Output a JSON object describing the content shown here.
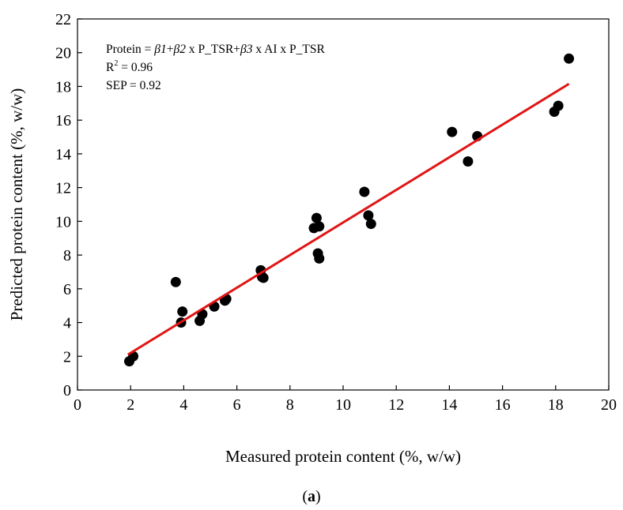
{
  "chart_data": {
    "type": "scatter",
    "title": "",
    "xlabel": "Measured protein content (%, w/w)",
    "ylabel": "Predicted protein content (%, w/w)",
    "xlim": [
      0,
      20
    ],
    "ylim": [
      0,
      22
    ],
    "x_ticks": [
      "0",
      "2",
      "4",
      "6",
      "8",
      "10",
      "12",
      "14",
      "16",
      "18",
      "20"
    ],
    "y_ticks": [
      "0",
      "2",
      "4",
      "6",
      "8",
      "10",
      "12",
      "14",
      "16",
      "18",
      "20",
      "22"
    ],
    "grid": false,
    "legend": "none",
    "marker_color": "#000000",
    "line_color": "#e11414",
    "points": [
      {
        "x": 1.95,
        "y": 1.7
      },
      {
        "x": 2.1,
        "y": 2.0
      },
      {
        "x": 3.7,
        "y": 6.4
      },
      {
        "x": 3.9,
        "y": 4.0
      },
      {
        "x": 3.95,
        "y": 4.65
      },
      {
        "x": 4.6,
        "y": 4.1
      },
      {
        "x": 4.7,
        "y": 4.5
      },
      {
        "x": 5.15,
        "y": 4.95
      },
      {
        "x": 5.55,
        "y": 5.3
      },
      {
        "x": 5.6,
        "y": 5.4
      },
      {
        "x": 6.9,
        "y": 7.1
      },
      {
        "x": 6.95,
        "y": 6.7
      },
      {
        "x": 7.0,
        "y": 6.65
      },
      {
        "x": 8.9,
        "y": 9.6
      },
      {
        "x": 9.0,
        "y": 10.2
      },
      {
        "x": 9.1,
        "y": 9.7
      },
      {
        "x": 9.05,
        "y": 8.1
      },
      {
        "x": 9.1,
        "y": 7.8
      },
      {
        "x": 10.8,
        "y": 11.75
      },
      {
        "x": 10.95,
        "y": 10.35
      },
      {
        "x": 11.05,
        "y": 9.85
      },
      {
        "x": 14.1,
        "y": 15.3
      },
      {
        "x": 14.7,
        "y": 13.55
      },
      {
        "x": 15.05,
        "y": 15.05
      },
      {
        "x": 17.95,
        "y": 16.5
      },
      {
        "x": 18.1,
        "y": 16.85
      },
      {
        "x": 18.5,
        "y": 19.65
      }
    ],
    "fit_line": {
      "x": [
        1.9,
        18.5
      ],
      "y": [
        2.1,
        18.15
      ]
    },
    "annotations": {
      "equation_prefix": "Protein = ",
      "beta1": "β1",
      "plus1": "+",
      "beta2": "β2",
      "term2": " x P_TSR+",
      "beta3": "β3",
      "term3": " x AI x P_TSR",
      "r2_prefix": "R",
      "r2_sup": "2",
      "r2_value": " = 0.96",
      "sep": "SEP = 0.92"
    },
    "caption_open": "(",
    "caption_letter": "a",
    "caption_close": ")"
  }
}
